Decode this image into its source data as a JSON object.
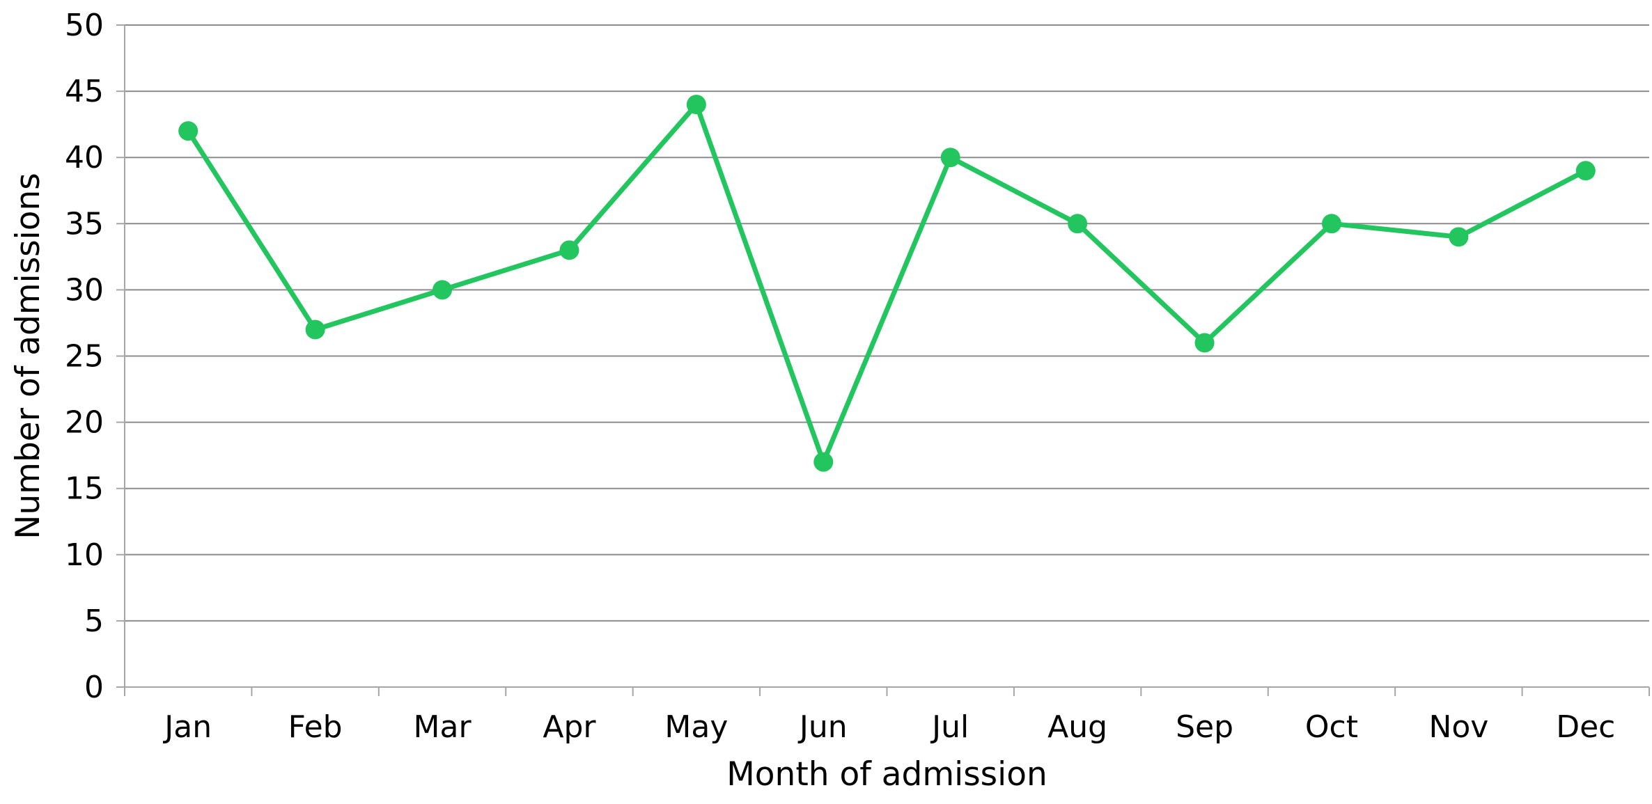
{
  "chart_data": {
    "type": "line",
    "title": "",
    "xlabel": "Month of admission",
    "ylabel": "Number of admissions",
    "categories": [
      "Jan",
      "Feb",
      "Mar",
      "Apr",
      "May",
      "Jun",
      "Jul",
      "Aug",
      "Sep",
      "Oct",
      "Nov",
      "Dec"
    ],
    "values": [
      42,
      27,
      30,
      33,
      44,
      17,
      40,
      35,
      26,
      35,
      34,
      39
    ],
    "ylim": [
      0,
      50
    ],
    "yticks": [
      "0",
      "5",
      "10",
      "15",
      "20",
      "25",
      "30",
      "35",
      "40",
      "45",
      "50"
    ],
    "grid": "horizontal",
    "legend": "none",
    "line_color": "#22c55e",
    "grid_color": "#8c8c8c",
    "axis_color": "#a6a6a6"
  }
}
